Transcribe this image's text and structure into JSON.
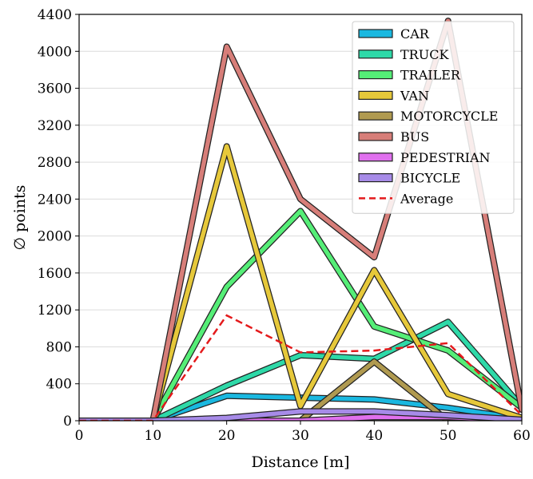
{
  "chart_data": {
    "type": "line",
    "xlabel": "Distance [m]",
    "ylabel": "∅ points",
    "xlim": [
      0,
      60
    ],
    "ylim": [
      0,
      4400
    ],
    "xticks": [
      0,
      10,
      20,
      30,
      40,
      50,
      60
    ],
    "yticks": [
      0,
      400,
      800,
      1200,
      1600,
      2000,
      2400,
      2800,
      3200,
      3600,
      4000,
      4400
    ],
    "grid": "horizontal",
    "legend_position": "top-right",
    "x": [
      0,
      10,
      20,
      30,
      40,
      50,
      60
    ],
    "series": [
      {
        "name": "CAR",
        "color": "#1ab8e0",
        "style": "band",
        "values": [
          0,
          0,
          270,
          250,
          230,
          140,
          20
        ]
      },
      {
        "name": "TRUCK",
        "color": "#2ed9a8",
        "style": "band",
        "values": [
          0,
          0,
          380,
          710,
          670,
          1070,
          150
        ]
      },
      {
        "name": "TRAILER",
        "color": "#55ee77",
        "style": "band",
        "values": [
          0,
          0,
          1450,
          2270,
          1020,
          760,
          140
        ]
      },
      {
        "name": "VAN",
        "color": "#e6c83a",
        "style": "band",
        "values": [
          0,
          0,
          2970,
          160,
          1630,
          290,
          30
        ]
      },
      {
        "name": "MOTORCYCLE",
        "color": "#b09a50",
        "style": "band",
        "values": [
          null,
          null,
          null,
          0,
          640,
          0,
          null
        ]
      },
      {
        "name": "BUS",
        "color": "#d77e79",
        "style": "band",
        "values": [
          0,
          0,
          4050,
          2400,
          1770,
          4330,
          120
        ]
      },
      {
        "name": "PEDESTRIAN",
        "color": "#e070ee",
        "style": "band",
        "values": [
          0,
          0,
          0,
          0,
          40,
          40,
          0
        ]
      },
      {
        "name": "BICYCLE",
        "color": "#a78be8",
        "style": "band",
        "values": [
          0,
          0,
          30,
          100,
          100,
          60,
          10
        ]
      },
      {
        "name": "Average",
        "color": "#e41a1c",
        "style": "dashed",
        "values": [
          0,
          0,
          1140,
          740,
          760,
          840,
          60
        ]
      }
    ]
  }
}
